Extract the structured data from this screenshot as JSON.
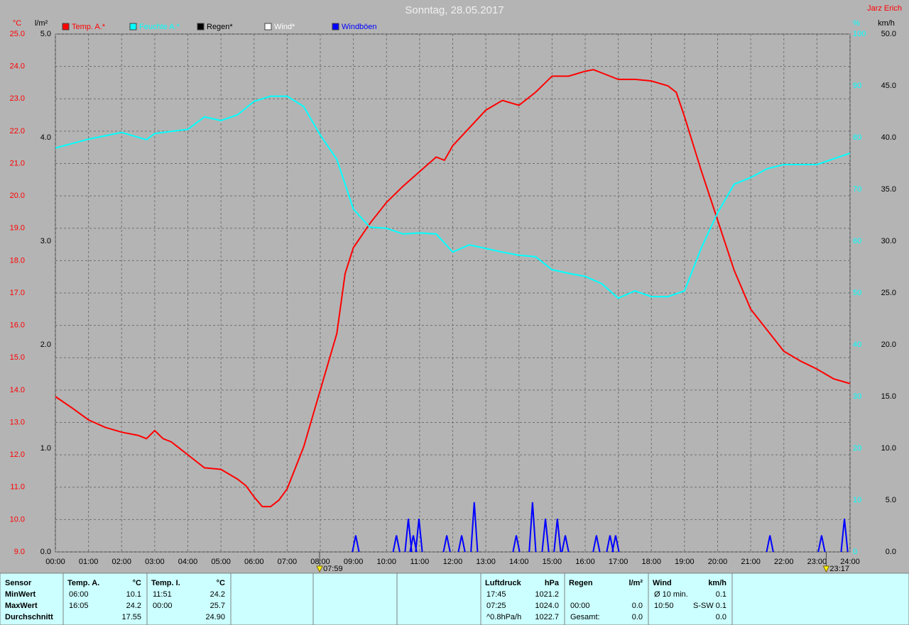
{
  "chart_data": {
    "type": "line",
    "title": "Sonntag, 28.05.2017",
    "author": "Jarz Erich",
    "xlim": [
      0,
      24
    ],
    "xticks": [
      {
        "value": 0,
        "label": "00:00"
      },
      {
        "value": 1,
        "label": "01:00"
      },
      {
        "value": 2,
        "label": "02:00"
      },
      {
        "value": 3,
        "label": "03:00"
      },
      {
        "value": 4,
        "label": "04:00"
      },
      {
        "value": 5,
        "label": "05:00"
      },
      {
        "value": 6,
        "label": "06:00"
      },
      {
        "value": 7,
        "label": "07:00"
      },
      {
        "value": 8,
        "label": "08:00"
      },
      {
        "value": 9,
        "label": "09:00"
      },
      {
        "value": 10,
        "label": "10:00"
      },
      {
        "value": 11,
        "label": "11:00"
      },
      {
        "value": 12,
        "label": "12:00"
      },
      {
        "value": 13,
        "label": "13:00"
      },
      {
        "value": 14,
        "label": "14:00"
      },
      {
        "value": 15,
        "label": "15:00"
      },
      {
        "value": 16,
        "label": "16:00"
      },
      {
        "value": 17,
        "label": "17:00"
      },
      {
        "value": 18,
        "label": "18:00"
      },
      {
        "value": 19,
        "label": "19:00"
      },
      {
        "value": 20,
        "label": "20:00"
      },
      {
        "value": 21,
        "label": "21:00"
      },
      {
        "value": 22,
        "label": "22:00"
      },
      {
        "value": 23,
        "label": "23:00"
      },
      {
        "value": 24,
        "label": "24:00"
      }
    ],
    "grid": true,
    "axes": [
      {
        "unit": "°C",
        "color": "#ff0000",
        "ylim": [
          9,
          25
        ],
        "yticks": [
          {
            "value": 9,
            "label": "9.0"
          },
          {
            "value": 10,
            "label": "10.0"
          },
          {
            "value": 11,
            "label": "11.0"
          },
          {
            "value": 12,
            "label": "12.0"
          },
          {
            "value": 13,
            "label": "13.0"
          },
          {
            "value": 14,
            "label": "14.0"
          },
          {
            "value": 15,
            "label": "15.0"
          },
          {
            "value": 16,
            "label": "16.0"
          },
          {
            "value": 17,
            "label": "17.0"
          },
          {
            "value": 18,
            "label": "18.0"
          },
          {
            "value": 19,
            "label": "19.0"
          },
          {
            "value": 20,
            "label": "20.0"
          },
          {
            "value": 21,
            "label": "21.0"
          },
          {
            "value": 22,
            "label": "22.0"
          },
          {
            "value": 23,
            "label": "23.0"
          },
          {
            "value": 24,
            "label": "24.0"
          },
          {
            "value": 25,
            "label": "25.0"
          }
        ]
      },
      {
        "unit": "l/m²",
        "color": "#000000",
        "ylim": [
          0,
          5
        ],
        "yticks": [
          {
            "value": 0,
            "label": "0.0"
          },
          {
            "value": 1,
            "label": "1.0"
          },
          {
            "value": 2,
            "label": "2.0"
          },
          {
            "value": 3,
            "label": "3.0"
          },
          {
            "value": 4,
            "label": "4.0"
          },
          {
            "value": 5,
            "label": "5.0"
          }
        ]
      },
      {
        "unit": "%",
        "color": "#00ffff",
        "ylim": [
          0,
          100
        ],
        "yticks": [
          0,
          10,
          20,
          30,
          40,
          50,
          60,
          70,
          80,
          90,
          100
        ]
      },
      {
        "unit": "km/h",
        "color": "#000000",
        "ylim": [
          0,
          50
        ],
        "yticks": [
          {
            "value": 0,
            "label": "0.0"
          },
          {
            "value": 5,
            "label": "5.0"
          },
          {
            "value": 10,
            "label": "10.0"
          },
          {
            "value": 15,
            "label": "15.0"
          },
          {
            "value": 20,
            "label": "20.0"
          },
          {
            "value": 25,
            "label": "25.0"
          },
          {
            "value": 30,
            "label": "30.0"
          },
          {
            "value": 35,
            "label": "35.0"
          },
          {
            "value": 40,
            "label": "40.0"
          },
          {
            "value": 45,
            "label": "45.0"
          },
          {
            "value": 50,
            "label": "50.0"
          }
        ]
      }
    ],
    "series": [
      {
        "name": "Temp. A.*",
        "color": "#ff0000",
        "axis": 0,
        "style": "line",
        "x": [
          0,
          0.5,
          1,
          1.5,
          2,
          2.5,
          2.75,
          3,
          3.25,
          3.5,
          4,
          4.25,
          4.5,
          5,
          5.5,
          5.75,
          6,
          6.25,
          6.5,
          6.75,
          7,
          7.5,
          8,
          8.5,
          8.75,
          9,
          9.5,
          10,
          10.5,
          11,
          11.5,
          11.75,
          12,
          12.5,
          13,
          13.5,
          14,
          14.5,
          15,
          15.5,
          16,
          16.25,
          16.5,
          17,
          17.5,
          18,
          18.5,
          18.75,
          19,
          19.5,
          20,
          20.5,
          21,
          21.5,
          22,
          22.5,
          23,
          23.5,
          24
        ],
        "values": [
          13.8,
          13.45,
          13.08,
          12.85,
          12.7,
          12.6,
          12.5,
          12.75,
          12.5,
          12.4,
          12.0,
          11.8,
          11.6,
          11.55,
          11.25,
          11.05,
          10.7,
          10.4,
          10.4,
          10.6,
          10.95,
          12.25,
          14.0,
          15.75,
          17.6,
          18.4,
          19.15,
          19.8,
          20.3,
          20.75,
          21.2,
          21.1,
          21.55,
          22.1,
          22.65,
          22.95,
          22.8,
          23.2,
          23.7,
          23.7,
          23.85,
          23.9,
          23.8,
          23.6,
          23.6,
          23.55,
          23.4,
          23.2,
          22.45,
          20.8,
          19.25,
          17.7,
          16.5,
          15.85,
          15.2,
          14.9,
          14.65,
          14.35,
          14.2
        ]
      },
      {
        "name": "Feuchte A.*",
        "color": "#00ffff",
        "axis": 2,
        "style": "line",
        "x": [
          0,
          1,
          2,
          2.75,
          3,
          4,
          4.5,
          5,
          5.5,
          6,
          6.5,
          7,
          7.5,
          8,
          8.5,
          9,
          9.5,
          10,
          10.5,
          11,
          11.5,
          12,
          12.5,
          13,
          13.5,
          14,
          14.5,
          15,
          15.5,
          16,
          16.5,
          17,
          17.5,
          18,
          18.5,
          19,
          19.5,
          20,
          20.5,
          21,
          21.5,
          22,
          23,
          24
        ],
        "values": [
          78,
          79.7,
          81,
          79.6,
          80.8,
          81.6,
          84,
          83.3,
          84.4,
          87,
          88,
          88,
          86,
          80.5,
          75.8,
          66.2,
          62.7,
          62.5,
          61.4,
          61.6,
          61.4,
          57.9,
          59.3,
          58.6,
          57.9,
          57.3,
          57,
          54.5,
          53.8,
          53.2,
          51.8,
          49,
          50.4,
          49.3,
          49.3,
          50.4,
          58.6,
          65.5,
          71,
          72.3,
          74,
          74.8,
          74.8,
          77
        ]
      },
      {
        "name": "Regen*",
        "color": "#000000",
        "axis": 1,
        "style": "line",
        "x": [],
        "values": []
      },
      {
        "name": "Wind*",
        "color": "#ffffff",
        "axis": 3,
        "style": "line",
        "x": [],
        "values": []
      },
      {
        "name": "Windböen",
        "color": "#0000ff",
        "axis": 3,
        "style": "spike",
        "x": [
          9.07,
          10.3,
          10.66,
          10.81,
          10.98,
          11.82,
          12.27,
          12.65,
          13.92,
          14.41,
          14.8,
          15.16,
          15.4,
          16.34,
          16.75,
          16.92,
          21.58,
          23.14,
          23.83
        ],
        "values": [
          1.6,
          1.6,
          3.2,
          1.6,
          3.2,
          1.6,
          1.6,
          4.8,
          1.6,
          4.8,
          3.2,
          3.2,
          1.6,
          1.6,
          1.6,
          1.6,
          1.6,
          1.6,
          3.2
        ]
      }
    ],
    "markers": [
      {
        "x": 7.98,
        "label": "07:59"
      },
      {
        "x": 23.28,
        "label": "23:17"
      }
    ]
  },
  "table": {
    "stat_labels": [
      "Sensor",
      "MinWert",
      "MaxWert",
      "Durchschnitt"
    ],
    "blocks": [
      {
        "header": "Temp. A.",
        "unit": "°C",
        "min": {
          "time": "06:00",
          "value": "10.1"
        },
        "max": {
          "time": "16:05",
          "value": "24.2"
        },
        "avg": {
          "value": "17.55"
        }
      },
      {
        "header": "Temp. I.",
        "unit": "°C",
        "min": {
          "time": "11:51",
          "value": "24.2"
        },
        "max": {
          "time": "00:00",
          "value": "25.7"
        },
        "avg": {
          "value": "24.90"
        }
      },
      {
        "header": "Luftdruck",
        "unit": "hPa",
        "min": {
          "time": "17:45",
          "value": "1021.2"
        },
        "max": {
          "time": "07:25",
          "value": "1024.0"
        },
        "avg": {
          "time": "^0.8hPa/h",
          "value": "1022.7"
        }
      },
      {
        "header": "Regen",
        "unit": "l/m²",
        "max": {
          "time": "00:00",
          "value": "0.0"
        },
        "avg": {
          "time": "Gesamt:",
          "value": "0.0"
        }
      },
      {
        "header": "Wind",
        "unit": "km/h",
        "min": {
          "time": "Ø 10 min.",
          "value": "0.1"
        },
        "max": {
          "time": "10:50",
          "dir": "S-SW",
          "value": "0.1"
        },
        "avg": {
          "value": "0.0"
        }
      }
    ]
  }
}
